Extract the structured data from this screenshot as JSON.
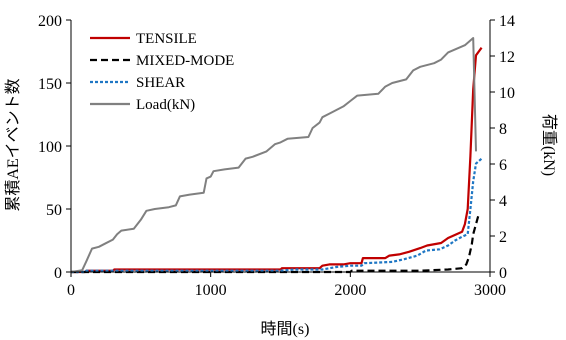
{
  "chart_data": {
    "type": "line",
    "xlabel": "時間(s)",
    "ylabel": "累積AEイベント数",
    "y2label": "荷重(kN)",
    "xlim": [
      0,
      3000
    ],
    "ylim": [
      0,
      200
    ],
    "y2lim": [
      0,
      14
    ],
    "x_ticks": [
      0,
      1000,
      2000,
      3000
    ],
    "y_ticks": [
      0,
      50,
      100,
      150,
      200
    ],
    "y2_ticks": [
      0,
      2,
      4,
      6,
      8,
      10,
      12,
      14
    ],
    "grid": false,
    "legend_position": "top-left",
    "series": [
      {
        "name": "TENSILE",
        "color": "#c00000",
        "dash": "solid",
        "axis": "left",
        "points": [
          [
            0,
            0
          ],
          [
            100,
            0
          ],
          [
            110,
            1
          ],
          [
            300,
            1
          ],
          [
            310,
            2
          ],
          [
            1500,
            2
          ],
          [
            1510,
            3
          ],
          [
            1780,
            3
          ],
          [
            1800,
            5
          ],
          [
            1850,
            6
          ],
          [
            1950,
            6
          ],
          [
            2000,
            7
          ],
          [
            2080,
            7
          ],
          [
            2090,
            11
          ],
          [
            2250,
            11
          ],
          [
            2280,
            13
          ],
          [
            2350,
            14
          ],
          [
            2420,
            16
          ],
          [
            2500,
            19
          ],
          [
            2550,
            21
          ],
          [
            2650,
            23
          ],
          [
            2700,
            27
          ],
          [
            2760,
            30
          ],
          [
            2800,
            32
          ],
          [
            2820,
            38
          ],
          [
            2840,
            50
          ],
          [
            2860,
            92
          ],
          [
            2880,
            145
          ],
          [
            2900,
            172
          ],
          [
            2920,
            175
          ],
          [
            2940,
            178
          ]
        ]
      },
      {
        "name": "MIXED-MODE",
        "color": "#000000",
        "dash": "dashed",
        "axis": "left",
        "points": [
          [
            0,
            0
          ],
          [
            2000,
            0
          ],
          [
            2010,
            1
          ],
          [
            2500,
            1
          ],
          [
            2700,
            2
          ],
          [
            2800,
            3
          ],
          [
            2830,
            6
          ],
          [
            2850,
            12
          ],
          [
            2870,
            22
          ],
          [
            2880,
            30
          ],
          [
            2900,
            38
          ],
          [
            2920,
            46
          ]
        ]
      },
      {
        "name": "SHEAR",
        "color": "#1f77c4",
        "dash": "dotted",
        "axis": "left",
        "points": [
          [
            0,
            0
          ],
          [
            100,
            0
          ],
          [
            110,
            1
          ],
          [
            1500,
            1
          ],
          [
            1600,
            2
          ],
          [
            1800,
            2
          ],
          [
            1900,
            4
          ],
          [
            2000,
            5
          ],
          [
            2080,
            5
          ],
          [
            2100,
            7
          ],
          [
            2300,
            8
          ],
          [
            2380,
            10
          ],
          [
            2480,
            13
          ],
          [
            2540,
            17
          ],
          [
            2640,
            18
          ],
          [
            2700,
            21
          ],
          [
            2750,
            25
          ],
          [
            2800,
            28
          ],
          [
            2840,
            30
          ],
          [
            2860,
            50
          ],
          [
            2880,
            72
          ],
          [
            2900,
            86
          ],
          [
            2920,
            88
          ],
          [
            2940,
            90
          ]
        ]
      },
      {
        "name": "Load(kN)",
        "color": "#808080",
        "dash": "solid",
        "axis": "right",
        "points": [
          [
            0,
            0
          ],
          [
            80,
            0.1
          ],
          [
            110,
            0.6
          ],
          [
            150,
            1.3
          ],
          [
            200,
            1.4
          ],
          [
            250,
            1.6
          ],
          [
            300,
            1.8
          ],
          [
            330,
            2.1
          ],
          [
            360,
            2.3
          ],
          [
            450,
            2.4
          ],
          [
            500,
            2.9
          ],
          [
            540,
            3.4
          ],
          [
            600,
            3.5
          ],
          [
            700,
            3.6
          ],
          [
            750,
            3.7
          ],
          [
            780,
            4.2
          ],
          [
            850,
            4.3
          ],
          [
            950,
            4.4
          ],
          [
            970,
            5.2
          ],
          [
            1000,
            5.3
          ],
          [
            1020,
            5.6
          ],
          [
            1100,
            5.7
          ],
          [
            1200,
            5.8
          ],
          [
            1250,
            6.3
          ],
          [
            1300,
            6.4
          ],
          [
            1400,
            6.7
          ],
          [
            1460,
            7.1
          ],
          [
            1500,
            7.2
          ],
          [
            1550,
            7.4
          ],
          [
            1700,
            7.5
          ],
          [
            1730,
            8.0
          ],
          [
            1780,
            8.3
          ],
          [
            1800,
            8.6
          ],
          [
            1850,
            8.8
          ],
          [
            1900,
            9.0
          ],
          [
            1950,
            9.2
          ],
          [
            2000,
            9.5
          ],
          [
            2050,
            9.8
          ],
          [
            2200,
            9.9
          ],
          [
            2250,
            10.3
          ],
          [
            2300,
            10.5
          ],
          [
            2400,
            10.7
          ],
          [
            2450,
            11.2
          ],
          [
            2500,
            11.4
          ],
          [
            2600,
            11.6
          ],
          [
            2650,
            11.8
          ],
          [
            2700,
            12.2
          ],
          [
            2820,
            12.6
          ],
          [
            2880,
            13.0
          ],
          [
            2900,
            6.7
          ]
        ]
      }
    ]
  }
}
